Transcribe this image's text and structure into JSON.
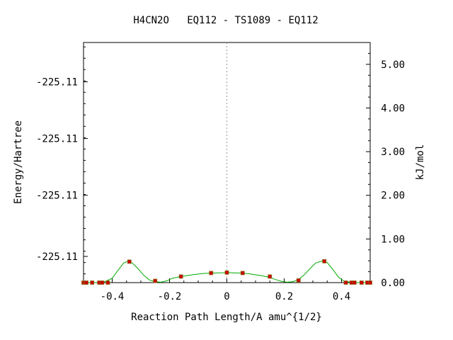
{
  "chart_data": {
    "type": "line",
    "title": "H4CN2O   EQ112 - TS1089 - EQ112",
    "xlabel": "Reaction Path Length/A amu^{1/2}",
    "ylabel": "Energy/Hartree",
    "y2label": "kJ/mol",
    "xlim": [
      -0.5,
      0.5
    ],
    "y2lim": [
      0.0,
      5.5
    ],
    "x_ticks": [
      {
        "value": -0.4,
        "label": "-0.4"
      },
      {
        "value": -0.2,
        "label": "-0.2"
      },
      {
        "value": 0.0,
        "label": "0"
      },
      {
        "value": 0.2,
        "label": "0.2"
      },
      {
        "value": 0.4,
        "label": "0.4"
      }
    ],
    "y_left_ticks": [
      {
        "value_kjmol": 4.6,
        "label": "-225.11"
      },
      {
        "value_kjmol": 3.3,
        "label": "-225.11"
      },
      {
        "value_kjmol": 2.0,
        "label": "-225.11"
      },
      {
        "value_kjmol": 0.6,
        "label": "-225.11"
      }
    ],
    "y_right_ticks": [
      {
        "value": 0.0,
        "label": "0.00"
      },
      {
        "value": 1.0,
        "label": "1.00"
      },
      {
        "value": 2.0,
        "label": "2.00"
      },
      {
        "value": 3.0,
        "label": "3.00"
      },
      {
        "value": 4.0,
        "label": "4.00"
      },
      {
        "value": 5.0,
        "label": "5.00"
      }
    ],
    "vertical_reference_x": 0.0,
    "grid": false,
    "colors": {
      "curve": "#00aa00",
      "points": "#cc0000",
      "point_border": "#8b6914",
      "reference_line": "#999999"
    },
    "curve": {
      "x": [
        -0.5,
        -0.46,
        -0.43,
        -0.4,
        -0.38,
        -0.36,
        -0.345,
        -0.33,
        -0.31,
        -0.29,
        -0.27,
        -0.25,
        -0.23,
        -0.21,
        -0.19,
        -0.16,
        -0.12,
        -0.08,
        -0.05,
        0.0,
        0.05,
        0.08,
        0.12,
        0.15,
        0.17,
        0.19,
        0.21,
        0.23,
        0.25,
        0.27,
        0.29,
        0.31,
        0.335,
        0.35,
        0.37,
        0.39,
        0.41,
        0.44,
        0.47,
        0.5
      ],
      "y": [
        0.0,
        0.0,
        0.01,
        0.1,
        0.28,
        0.45,
        0.49,
        0.45,
        0.32,
        0.17,
        0.06,
        0.02,
        0.01,
        0.04,
        0.1,
        0.14,
        0.18,
        0.21,
        0.22,
        0.23,
        0.22,
        0.2,
        0.16,
        0.12,
        0.07,
        0.03,
        0.01,
        0.02,
        0.07,
        0.18,
        0.32,
        0.45,
        0.5,
        0.46,
        0.3,
        0.12,
        0.03,
        0.0,
        0.0,
        0.0
      ]
    },
    "points": {
      "x": [
        -0.5,
        -0.495,
        -0.49,
        -0.47,
        -0.445,
        -0.435,
        -0.415,
        -0.34,
        -0.25,
        -0.16,
        -0.055,
        0.0,
        0.055,
        0.15,
        0.25,
        0.34,
        0.415,
        0.435,
        0.445,
        0.47,
        0.49,
        0.5
      ],
      "y": [
        0.0,
        0.0,
        0.0,
        0.0,
        0.0,
        0.0,
        0.0,
        0.48,
        0.04,
        0.14,
        0.22,
        0.23,
        0.22,
        0.14,
        0.05,
        0.49,
        0.0,
        0.0,
        0.0,
        0.0,
        0.0,
        0.0
      ]
    }
  }
}
